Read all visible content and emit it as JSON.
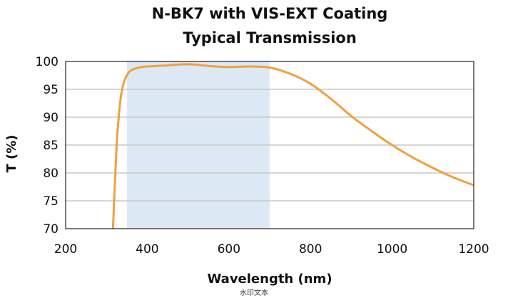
{
  "chart_data": {
    "type": "line",
    "title": "N-BK7 with VIS-EXT Coating",
    "subtitle": "Typical Transmission",
    "xlabel": "Wavelength (nm)",
    "ylabel": "T (%)",
    "xlim": [
      200,
      1200
    ],
    "ylim": [
      70,
      100
    ],
    "x_ticks": [
      "200",
      "400",
      "600",
      "800",
      "1000",
      "1200"
    ],
    "y_ticks": [
      "70",
      "75",
      "80",
      "85",
      "90",
      "95",
      "100"
    ],
    "grid": "horizontal",
    "highlight_band": {
      "x_start": 350,
      "x_end": 700,
      "color": "#dce9f4"
    },
    "series": [
      {
        "color": "#f0a040",
        "x": [
          316,
          320,
          325,
          330,
          335,
          340,
          345,
          350,
          360,
          380,
          400,
          450,
          500,
          550,
          600,
          650,
          700,
          750,
          800,
          850,
          900,
          950,
          1000,
          1050,
          1100,
          1150,
          1200
        ],
        "y": [
          70,
          77,
          85,
          90,
          93.5,
          95.5,
          96.7,
          97.5,
          98.4,
          98.9,
          99.1,
          99.3,
          99.5,
          99.2,
          99.0,
          99.1,
          98.9,
          97.8,
          96.0,
          93.3,
          90.2,
          87.5,
          85.0,
          82.8,
          80.9,
          79.2,
          77.8
        ]
      }
    ]
  },
  "watermark": "水印文本"
}
